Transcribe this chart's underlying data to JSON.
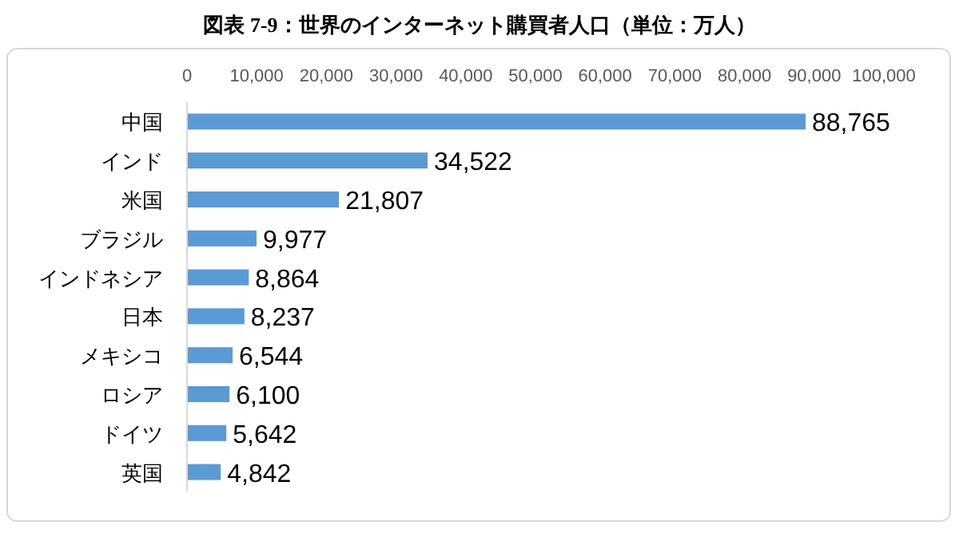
{
  "chart_data": {
    "type": "bar",
    "orientation": "horizontal",
    "title": "図表 7-9：世界のインターネット購買者人口（単位：万人）",
    "categories": [
      "中国",
      "インド",
      "米国",
      "ブラジル",
      "インドネシア",
      "日本",
      "メキシコ",
      "ロシア",
      "ドイツ",
      "英国"
    ],
    "values": [
      88765,
      34522,
      21807,
      9977,
      8864,
      8237,
      6544,
      6100,
      5642,
      4842
    ],
    "value_labels": [
      "88,765",
      "34,522",
      "21,807",
      "9,977",
      "8,864",
      "8,237",
      "6,544",
      "6,100",
      "5,642",
      "4,842"
    ],
    "color": "#5b9bd5",
    "xlim": [
      0,
      100000
    ],
    "xticks": [
      0,
      {
        "value": 10000,
        "label": "10,000"
      },
      {
        "value": 20000,
        "label": "20,000"
      },
      {
        "value": 30000,
        "label": "30,000"
      },
      {
        "value": 40000,
        "label": "40,000"
      },
      {
        "value": 50000,
        "label": "50,000"
      },
      {
        "value": 60000,
        "label": "60,000"
      },
      {
        "value": 70000,
        "label": "70,000"
      },
      {
        "value": 80000,
        "label": "80,000"
      },
      {
        "value": 90000,
        "label": "90,000"
      },
      {
        "value": 100000,
        "label": "100,000"
      }
    ]
  }
}
